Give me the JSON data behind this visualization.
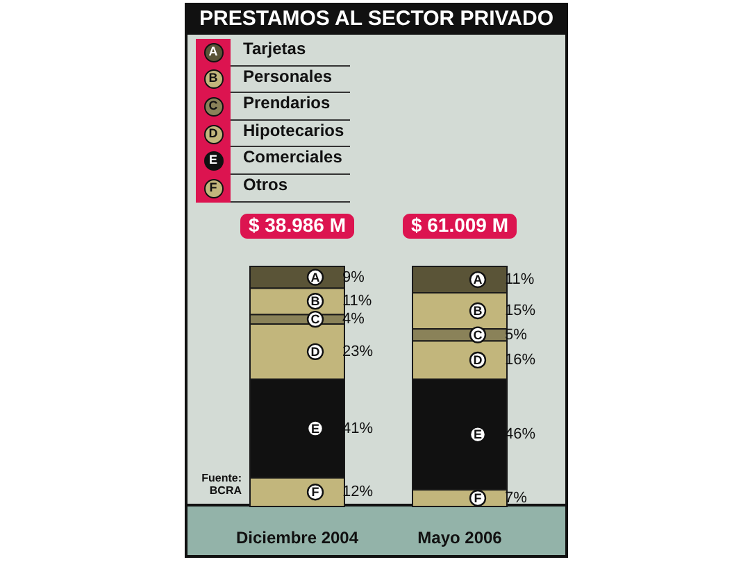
{
  "chart_data": {
    "type": "bar",
    "title": "PRESTAMOS AL SECTOR PRIVADO",
    "categories": [
      "Diciembre 2004",
      "Mayo 2006"
    ],
    "stacked": true,
    "series": [
      {
        "name": "Otros",
        "color": "#c2b67c",
        "values": [
          12,
          7
        ],
        "value_labels": [
          "12%",
          "7%"
        ]
      },
      {
        "name": "Comerciales",
        "color": "#111111",
        "values": [
          41,
          46
        ],
        "value_labels": [
          "41%",
          "46%"
        ]
      },
      {
        "name": "Hipotecarios",
        "color": "#c2b67c",
        "values": [
          23,
          16
        ],
        "value_labels": [
          "23%",
          "16%"
        ]
      },
      {
        "name": "Prendarios",
        "color": "#8a8259",
        "values": [
          4,
          5
        ],
        "value_labels": [
          "4%",
          "5%"
        ]
      },
      {
        "name": "Personales",
        "color": "#c2b67c",
        "values": [
          11,
          15
        ],
        "value_labels": [
          "11%",
          "15%"
        ]
      },
      {
        "name": "Tarjetas",
        "color": "#5a5437",
        "values": [
          9,
          11
        ],
        "value_labels": [
          "9%",
          "11%"
        ]
      }
    ],
    "legend": "top left",
    "annotations": [
      "F",
      "E",
      "D",
      "C",
      "B",
      "A",
      "Fuente:\nBCRA",
      {
        "text": "$ 38.986 M",
        "x": "Diciembre 2004",
        "y": 100
      },
      {
        "text": "$ 61.009 M",
        "x": "Mayo 2006",
        "y": 100
      }
    ]
  }
}
